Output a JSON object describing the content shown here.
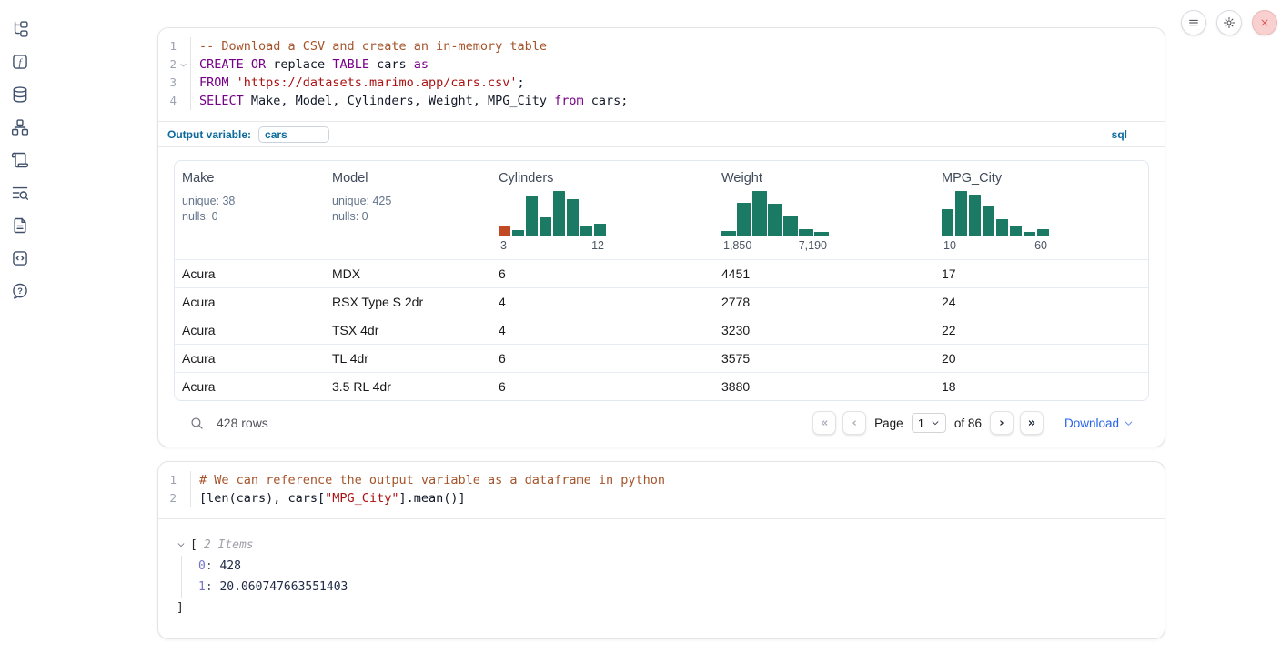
{
  "top_controls": {
    "menu_icon": "hamburger-menu",
    "settings_icon": "gear",
    "shutdown_icon": "close-x"
  },
  "sidebar": {
    "items": [
      {
        "name": "file-explorer",
        "icon": "file-tree-icon"
      },
      {
        "name": "variables",
        "icon": "function-square-icon"
      },
      {
        "name": "data-sources",
        "icon": "database-icon"
      },
      {
        "name": "dependency-graph",
        "icon": "network-icon"
      },
      {
        "name": "outline",
        "icon": "scroll-icon"
      },
      {
        "name": "logs",
        "icon": "text-search-icon"
      },
      {
        "name": "documentation",
        "icon": "file-text-icon"
      },
      {
        "name": "snippets",
        "icon": "code-square-icon"
      },
      {
        "name": "help",
        "icon": "help-bubble-icon"
      }
    ]
  },
  "sql_cell": {
    "line_numbers": [
      "1",
      "2",
      "3",
      "4"
    ],
    "lines": [
      {
        "tokens": [
          {
            "type": "comment",
            "text": "-- Download a CSV and create an in-memory table"
          }
        ]
      },
      {
        "tokens": [
          {
            "type": "keyword",
            "text": "CREATE OR"
          },
          {
            "type": "plain",
            "text": " replace "
          },
          {
            "type": "keyword",
            "text": "TABLE"
          },
          {
            "type": "plain",
            "text": " cars "
          },
          {
            "type": "keyword",
            "text": "as"
          }
        ]
      },
      {
        "tokens": [
          {
            "type": "keyword",
            "text": "FROM"
          },
          {
            "type": "plain",
            "text": " "
          },
          {
            "type": "string",
            "text": "'https://datasets.marimo.app/cars.csv'"
          },
          {
            "type": "plain",
            "text": ";"
          }
        ]
      },
      {
        "tokens": [
          {
            "type": "keyword",
            "text": "SELECT"
          },
          {
            "type": "plain",
            "text": " Make, Model, Cylinders, Weight, MPG_City "
          },
          {
            "type": "keyword",
            "text": "from"
          },
          {
            "type": "plain",
            "text": " cars;"
          }
        ]
      }
    ],
    "output_variable_label": "Output variable:",
    "output_variable_value": "cars",
    "language_badge": "sql"
  },
  "table": {
    "colors": {
      "bar_green": "#1b7a63",
      "bar_orange": "#c14a24"
    },
    "columns": [
      {
        "title": "Make",
        "unique": "unique: 38",
        "nulls": "nulls: 0"
      },
      {
        "title": "Model",
        "unique": "unique: 425",
        "nulls": "nulls: 0"
      },
      {
        "title": "Cylinders",
        "histogram": {
          "type": "bar",
          "values": [
            0.22,
            0.15,
            0.88,
            0.42,
            1.0,
            0.82,
            0.22,
            0.28
          ],
          "colors": [
            "#c14a24"
          ],
          "color": "#1b7a63",
          "min_label": "3",
          "max_label": "12"
        }
      },
      {
        "title": "Weight",
        "histogram": {
          "type": "bar",
          "values": [
            0.12,
            0.75,
            1.0,
            0.73,
            0.47,
            0.16,
            0.11
          ],
          "color": "#1b7a63",
          "min_label": "1,850",
          "max_label": "7,190"
        }
      },
      {
        "title": "MPG_City",
        "histogram": {
          "type": "bar",
          "values": [
            0.6,
            1.0,
            0.92,
            0.68,
            0.38,
            0.25,
            0.1,
            0.17
          ],
          "color": "#1b7a63",
          "min_label": "10",
          "max_label": "60"
        }
      }
    ],
    "rows": [
      [
        "Acura",
        "MDX",
        "6",
        "4451",
        "17"
      ],
      [
        "Acura",
        "RSX Type S 2dr",
        "4",
        "2778",
        "24"
      ],
      [
        "Acura",
        "TSX 4dr",
        "4",
        "3230",
        "22"
      ],
      [
        "Acura",
        "TL 4dr",
        "6",
        "3575",
        "20"
      ],
      [
        "Acura",
        "3.5 RL 4dr",
        "6",
        "3880",
        "18"
      ]
    ],
    "footer": {
      "row_count": "428 rows",
      "page_label": "Page",
      "page_value": "1",
      "of_label": "of 86",
      "download_label": "Download"
    }
  },
  "python_cell": {
    "line_numbers": [
      "1",
      "2"
    ],
    "lines": [
      {
        "tokens": [
          {
            "type": "comment",
            "text": "# We can reference the output variable as a dataframe in python"
          }
        ]
      },
      {
        "tokens": [
          {
            "type": "plain",
            "text": "[len(cars), cars["
          },
          {
            "type": "string",
            "text": "\"MPG_City\""
          },
          {
            "type": "plain",
            "text": "].mean()]"
          }
        ]
      }
    ]
  },
  "result_tree": {
    "open_bracket": "[",
    "items_label": "2 Items",
    "entries": [
      {
        "key": "0",
        "sep": ": ",
        "value": "428"
      },
      {
        "key": "1",
        "sep": ": ",
        "value": "20.060747663551403"
      }
    ],
    "close_bracket": "]"
  }
}
